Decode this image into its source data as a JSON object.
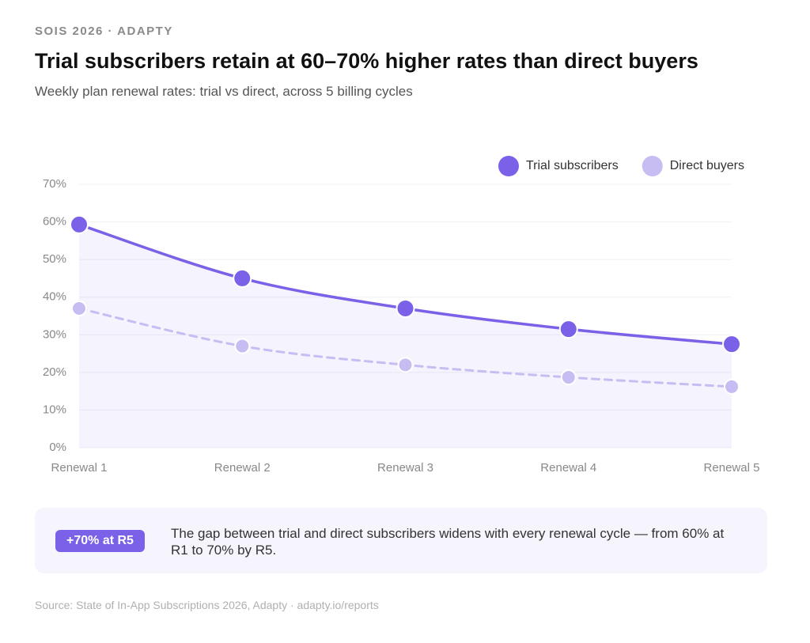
{
  "eyebrow": "SOIS 2026 · ADAPTY",
  "chart_data": {
    "type": "line",
    "title": "Trial subscribers retain at 60–70% higher rates than direct buyers",
    "subtitle": "Weekly plan renewal rates: trial vs direct, across 5 billing cycles",
    "categories": [
      "Renewal 1",
      "Renewal 2",
      "Renewal 3",
      "Renewal 4",
      "Renewal 5"
    ],
    "series": [
      {
        "name": "Trial subscribers",
        "color": "#7b61e8",
        "values": [
          59.3,
          45,
          37,
          31.5,
          27.5
        ],
        "area": true
      },
      {
        "name": "Direct buyers",
        "color": "#c8bdf3",
        "values": [
          37,
          27,
          22,
          18.7,
          16.2
        ],
        "dashed": true
      }
    ],
    "ylim": [
      0,
      70
    ],
    "yticks": [
      {
        "value": 0,
        "label": "0%"
      },
      {
        "value": 10,
        "label": "10%"
      },
      {
        "value": 20,
        "label": "20%"
      },
      {
        "value": 30,
        "label": "30%"
      },
      {
        "value": 40,
        "label": "40%"
      },
      {
        "value": 50,
        "label": "50%"
      },
      {
        "value": 60,
        "label": "60%"
      },
      {
        "value": 70,
        "label": "70%"
      }
    ],
    "grid": true,
    "legend": "top-right"
  },
  "callout": {
    "badge": "+70% at R5",
    "text": "The gap between trial and direct subscribers widens with every renewal cycle — from 60% at R1 to 70% by R5."
  },
  "source": "Source: State of In-App Subscriptions 2026, Adapty · adapty.io/reports"
}
